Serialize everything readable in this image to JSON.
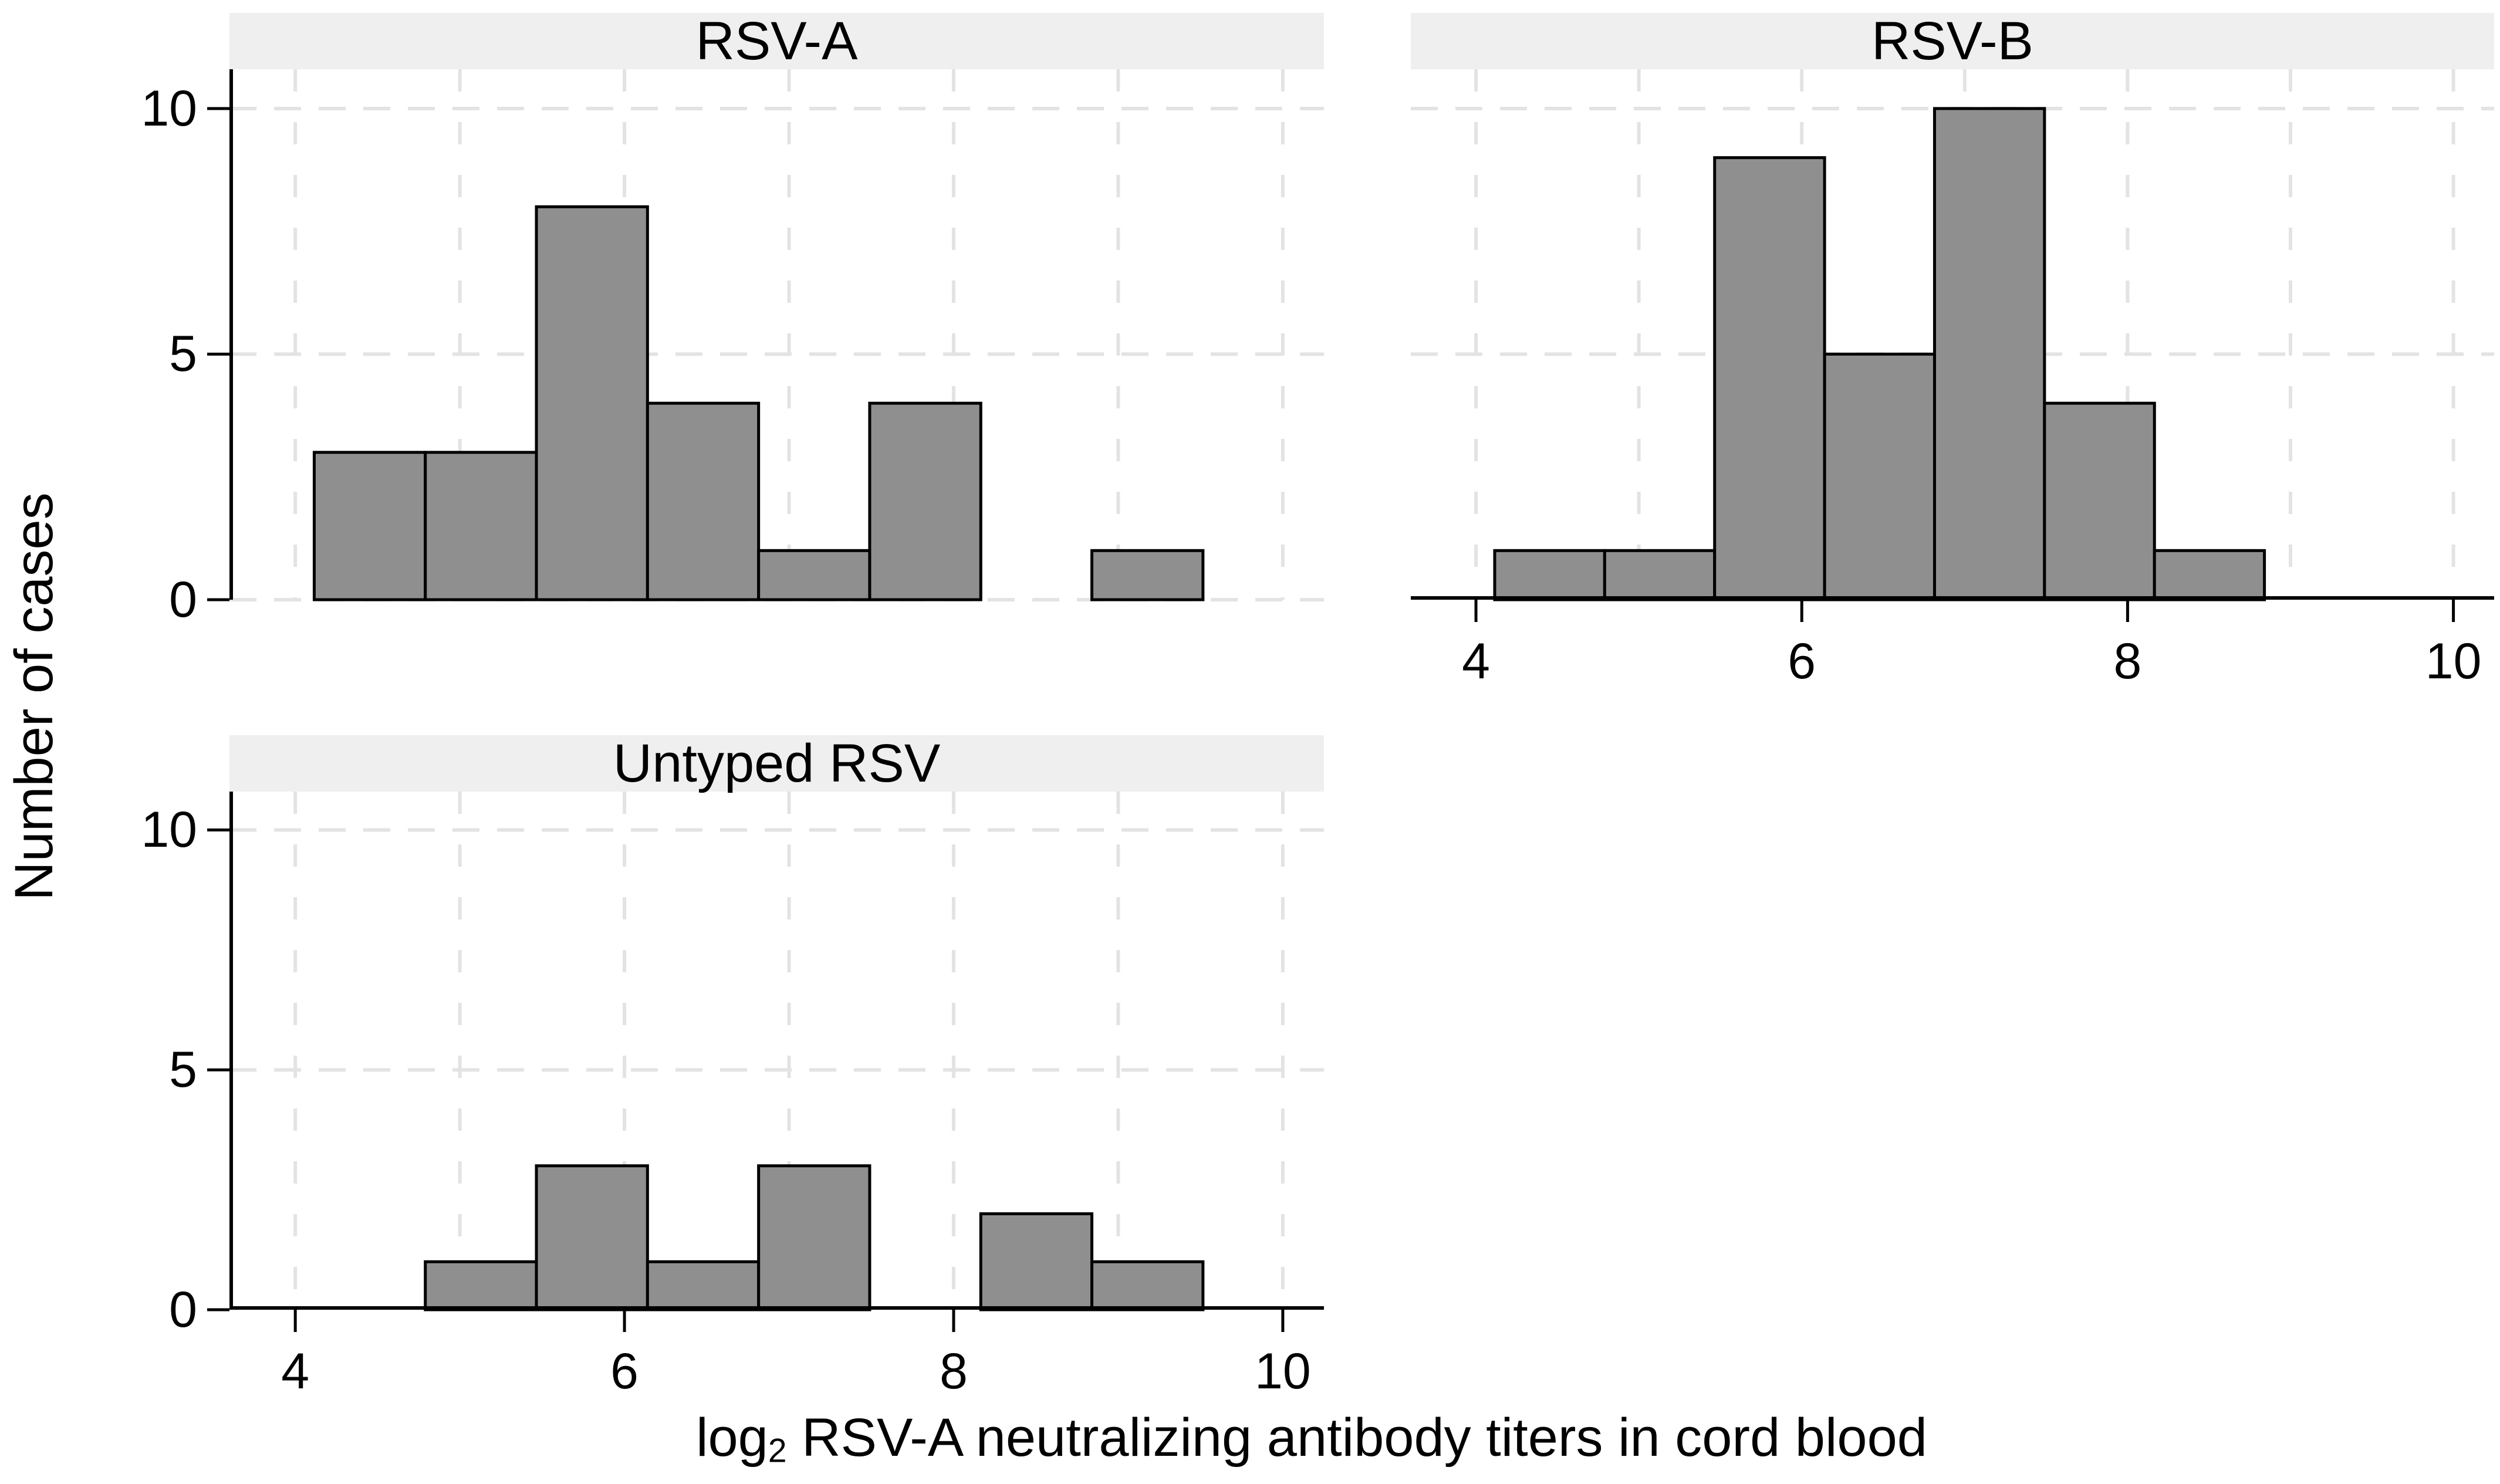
{
  "figure": {
    "y_axis_title": "Number of cases",
    "x_axis_title": {
      "prefix": "log",
      "subscript": "2",
      "rest": " RSV-A neutralizing antibody titers in cord blood"
    }
  },
  "axes": {
    "x_tick_labels": [
      "4",
      "6",
      "8",
      "10"
    ],
    "x_tick_values": [
      4,
      6,
      8,
      10
    ],
    "y_tick_labels": [
      "0",
      "5",
      "10"
    ],
    "y_tick_values": [
      0,
      5,
      10
    ],
    "xlim": [
      3.6,
      10.25
    ],
    "ylim": [
      0,
      10.8
    ],
    "x_gridlines": [
      4,
      5,
      6,
      7,
      8,
      9,
      10
    ],
    "y_gridlines": [
      5,
      10
    ],
    "grid_style": "dashed"
  },
  "chart_data": [
    {
      "type": "bar",
      "subtype": "histogram",
      "title": "RSV-A",
      "bin_start": 4.115,
      "bin_width": 0.675,
      "bin_edges": [
        4.115,
        4.79,
        5.465,
        6.14,
        6.815,
        7.49,
        8.165,
        8.84,
        9.515
      ],
      "counts": [
        3,
        3,
        8,
        4,
        1,
        4,
        0,
        1
      ],
      "show_x_axis": false,
      "show_y_axis": true
    },
    {
      "type": "bar",
      "subtype": "histogram",
      "title": "RSV-B",
      "bin_start": 4.115,
      "bin_width": 0.675,
      "bin_edges": [
        4.115,
        4.79,
        5.465,
        6.14,
        6.815,
        7.49,
        8.165,
        8.84,
        9.515
      ],
      "counts": [
        1,
        1,
        9,
        5,
        10,
        4,
        1,
        0
      ],
      "show_x_axis": true,
      "show_y_axis": false
    },
    {
      "type": "bar",
      "subtype": "histogram",
      "title": "Untyped RSV",
      "bin_start": 4.115,
      "bin_width": 0.675,
      "bin_edges": [
        4.115,
        4.79,
        5.465,
        6.14,
        6.815,
        7.49,
        8.165,
        8.84,
        9.515
      ],
      "counts": [
        0,
        1,
        3,
        1,
        3,
        0,
        2,
        1
      ],
      "show_x_axis": true,
      "show_y_axis": true
    }
  ],
  "colors": {
    "bar_fill": "#8f8f8f",
    "bar_stroke": "#000000",
    "strip_background": "#efefef",
    "gridline": "#e3e3e3",
    "axis": "#000000",
    "background": "#ffffff"
  }
}
